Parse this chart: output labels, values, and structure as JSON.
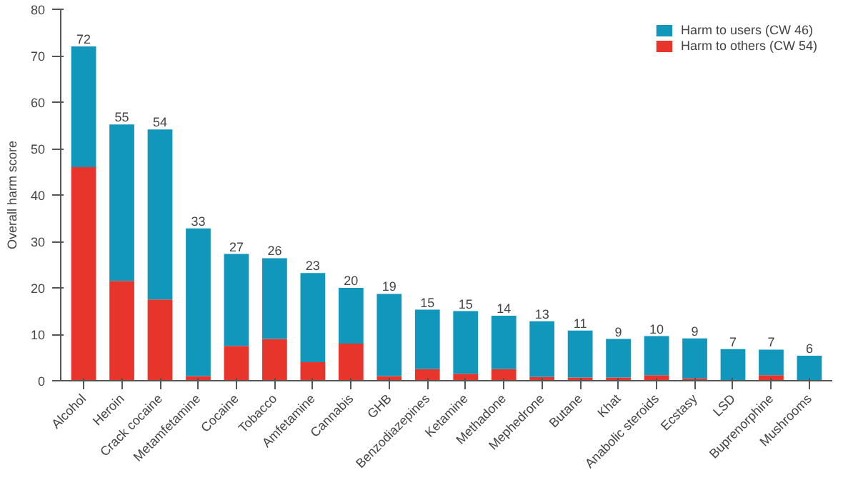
{
  "chart_data": {
    "type": "bar",
    "stacked": true,
    "ylabel": "Overall harm score",
    "categories": [
      "Alcohol",
      "Heroin",
      "Crack cocaine",
      "Metamfetamine",
      "Cocaine",
      "Tobacco",
      "Amfetamine",
      "Cannabis",
      "GHB",
      "Benzodiazepines",
      "Ketamine",
      "Methadone",
      "Mephedrone",
      "Butane",
      "Khat",
      "Anabolic steroids",
      "Ecstasy",
      "LSD",
      "Buprenorphine",
      "Mushrooms"
    ],
    "series": [
      {
        "name": "Harm to others (CW 54)",
        "color": "#e8352c",
        "values": [
          46,
          21.5,
          17.5,
          1,
          7.5,
          9,
          4,
          8,
          1,
          2.5,
          1.5,
          2.5,
          0.8,
          0.7,
          0.7,
          1.2,
          0.5,
          null,
          1.2,
          null
        ]
      },
      {
        "name": "Harm to users (CW 46)",
        "color": "#1196bc",
        "values": [
          26,
          33.7,
          36.6,
          31.8,
          19.8,
          17.4,
          19.2,
          12,
          17.7,
          12.8,
          13.5,
          11.5,
          12,
          10.1,
          8.3,
          8.4,
          8.6,
          6.8,
          5.5,
          5.4
        ]
      }
    ],
    "totals": [
      "72",
      "55",
      "54",
      "33",
      "27",
      "26",
      "23",
      "20",
      "19",
      "15",
      "15",
      "14",
      "13",
      "11",
      "9",
      "10",
      "9",
      "7",
      "7",
      "6"
    ],
    "ylim": [
      0,
      80
    ],
    "yticks": [
      0,
      10,
      20,
      30,
      40,
      50,
      60,
      70,
      80
    ],
    "grid": false,
    "legend": "top right"
  }
}
